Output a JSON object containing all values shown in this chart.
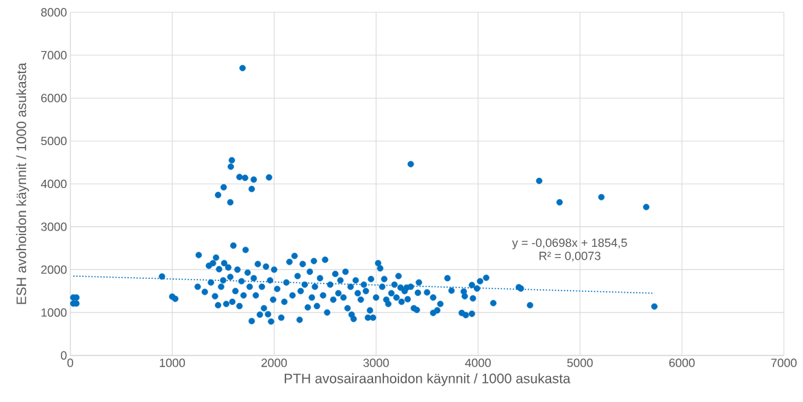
{
  "chart_data": {
    "type": "scatter",
    "xlabel": "PTH avosairaanhoidon käynnit / 1000 asukasta",
    "ylabel": "ESH avohoidon käynnit / 1000 asukasta",
    "xlim": [
      0,
      7000
    ],
    "xticks": [
      0,
      1000,
      2000,
      3000,
      4000,
      5000,
      6000,
      7000
    ],
    "ylim": [
      0,
      8000
    ],
    "yticks": [
      0,
      1000,
      2000,
      3000,
      4000,
      5000,
      6000,
      7000,
      8000
    ],
    "grid": true,
    "annotations": [
      "y = -0,0698x + 1854,5",
      "R² = 0,0073"
    ],
    "series": [
      {
        "color": "#0070c0",
        "marker": "circle",
        "x": [
          1690,
          1585,
          1575,
          1660,
          1715,
          1800,
          1950,
          1505,
          1450,
          1780,
          1570,
          3340,
          4600,
          4800,
          5210,
          5650,
          5730,
          30,
          60,
          30,
          60,
          900,
          1000,
          1030,
          4400,
          4420,
          4510,
          4150,
          4080,
          4020,
          3990,
          3950,
          3940,
          3940,
          3880,
          3870,
          3860,
          3840,
          3700,
          3740,
          3630,
          3600,
          3560,
          3560,
          3500,
          3420,
          3410,
          3400,
          3370,
          3340,
          3310,
          3300,
          3240,
          3220,
          3200,
          1260,
          1250,
          1320,
          1360,
          1380,
          1400,
          1420,
          1430,
          1450,
          1460,
          1480,
          1500,
          1510,
          1530,
          1550,
          1570,
          1590,
          1600,
          1620,
          1640,
          1660,
          1680,
          1700,
          1720,
          1740,
          1760,
          1780,
          1800,
          1820,
          1840,
          1860,
          1880,
          1900,
          1920,
          1940,
          1960,
          1970,
          1990,
          2000,
          2030,
          2070,
          2100,
          2120,
          2150,
          2180,
          2200,
          2230,
          2250,
          2260,
          2280,
          2300,
          2330,
          2350,
          2370,
          2390,
          2400,
          2420,
          2450,
          2480,
          2500,
          2520,
          2550,
          2580,
          2600,
          2630,
          2650,
          2680,
          2700,
          2720,
          2750,
          2760,
          2780,
          2800,
          2820,
          2850,
          2880,
          2900,
          2920,
          2940,
          2950,
          2970,
          3000,
          3020,
          3040,
          3060,
          3080,
          3100,
          3120,
          3150,
          3180,
          3250,
          3280
        ],
        "values": [
          6700,
          4550,
          4400,
          4160,
          4140,
          4100,
          4150,
          3920,
          3740,
          3880,
          3570,
          4460,
          4070,
          3570,
          3690,
          3460,
          1140,
          1350,
          1350,
          1210,
          1210,
          1840,
          1370,
          1320,
          1590,
          1560,
          1170,
          1220,
          1810,
          1730,
          1560,
          1330,
          1640,
          970,
          940,
          1380,
          1490,
          990,
          1800,
          1510,
          1200,
          1050,
          1350,
          990,
          1470,
          1700,
          1460,
          1060,
          1100,
          1600,
          1310,
          1580,
          1580,
          1850,
          1350,
          2340,
          1600,
          1480,
          2090,
          1700,
          2150,
          1380,
          2280,
          1170,
          2010,
          1600,
          1750,
          2150,
          1200,
          2050,
          1830,
          1250,
          2560,
          1500,
          2000,
          1150,
          1730,
          1400,
          2460,
          1930,
          1600,
          800,
          1800,
          1400,
          2130,
          950,
          1600,
          1100,
          2070,
          960,
          1750,
          790,
          1300,
          2000,
          1550,
          880,
          1250,
          1700,
          2180,
          1400,
          2320,
          1850,
          830,
          1500,
          2130,
          1650,
          1120,
          1950,
          1350,
          2200,
          1600,
          1150,
          1800,
          1400,
          2230,
          1000,
          1650,
          1300,
          1900,
          1450,
          1750,
          1350,
          1950,
          1100,
          1600,
          950,
          850,
          1750,
          1450,
          1300,
          1650,
          1500,
          880,
          1050,
          1780,
          880,
          1350,
          2150,
          2030,
          1600,
          1780,
          1300,
          1200,
          1450,
          1650,
          1250,
          1500
        ]
      },
      {
        "type": "line",
        "color": "#0070c0",
        "marker": "none",
        "line_style": "dotted",
        "x": [
          30,
          5730
        ],
        "values": [
          1850,
          1450
        ]
      }
    ]
  }
}
